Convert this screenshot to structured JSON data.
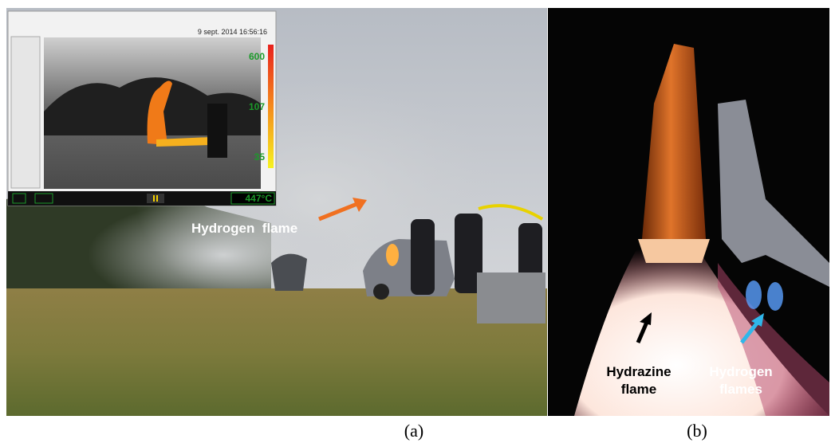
{
  "panels": [
    {
      "label": "(a)",
      "inset": {
        "timestamp": "9 sept. 2014 16:56:16",
        "scale": [
          "600",
          "107",
          "35"
        ],
        "reading": "447°C"
      },
      "annotations": [
        {
          "lines": [
            "Hydrogen  flame"
          ]
        }
      ]
    },
    {
      "label": "(b)",
      "annotations": [
        {
          "lines": [
            "Hydrazine",
            "flame"
          ]
        },
        {
          "lines": [
            "Hydrogen",
            "flames"
          ]
        }
      ]
    }
  ]
}
